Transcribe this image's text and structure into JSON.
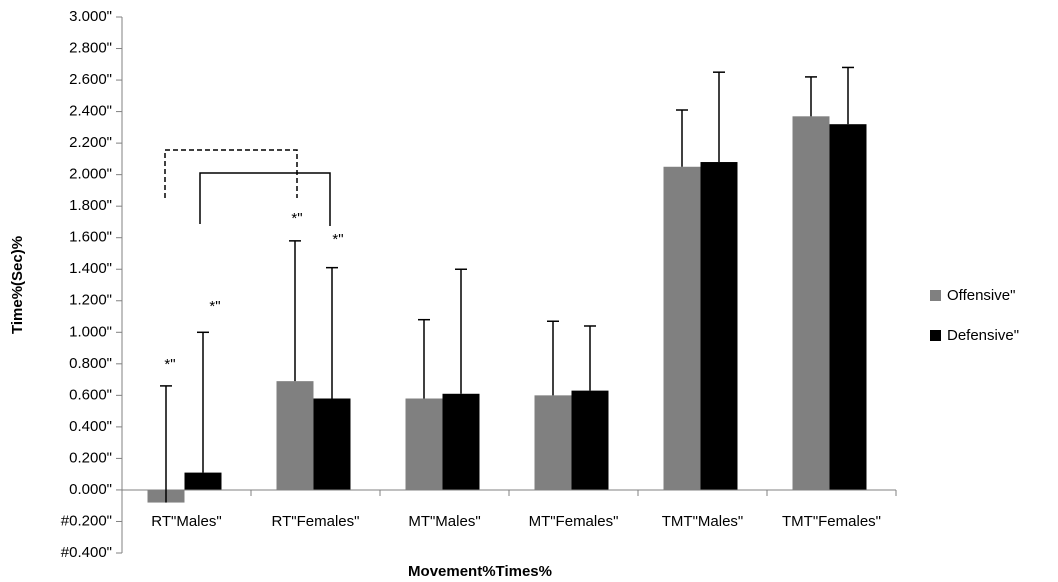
{
  "chart_data": {
    "type": "bar",
    "x_label": "Movement%Times%",
    "y_label": "Time%(Sec)%",
    "categories": [
      "RT\"Males\"",
      "RT\"Females\"",
      "MT\"Males\"",
      "MT\"Females\"",
      "TMT\"Males\"",
      "TMT\"Females\""
    ],
    "series": [
      {
        "name": "Offensive\"",
        "color": "#808080",
        "values": [
          -0.08,
          0.69,
          0.58,
          0.6,
          2.05,
          2.37
        ],
        "errors": [
          0.74,
          0.89,
          0.5,
          0.47,
          0.36,
          0.25
        ]
      },
      {
        "name": "Defensive\"",
        "color": "#000000",
        "values": [
          0.11,
          0.58,
          0.61,
          0.63,
          2.08,
          2.32
        ],
        "errors": [
          0.89,
          0.83,
          0.79,
          0.41,
          0.57,
          0.36
        ]
      }
    ],
    "annotations": [
      "*\"",
      "*\"",
      "*\"",
      "*\""
    ],
    "ylim": [
      -0.4,
      3.0
    ],
    "yticks": [
      {
        "value": -0.4,
        "label": "#0.400\""
      },
      {
        "value": -0.2,
        "label": "#0.200\""
      },
      {
        "value": 0,
        "label": "0.000\""
      },
      {
        "value": 0.2,
        "label": "0.200\""
      },
      {
        "value": 0.4,
        "label": "0.400\""
      },
      {
        "value": 0.6,
        "label": "0.600\""
      },
      {
        "value": 0.8,
        "label": "0.800\""
      },
      {
        "value": 1.0,
        "label": "1.000\""
      },
      {
        "value": 1.2,
        "label": "1.200\""
      },
      {
        "value": 1.4,
        "label": "1.400\""
      },
      {
        "value": 1.6,
        "label": "1.600\""
      },
      {
        "value": 1.8,
        "label": "1.800\""
      },
      {
        "value": 2.0,
        "label": "2.000\""
      },
      {
        "value": 2.2,
        "label": "2.200\""
      },
      {
        "value": 2.4,
        "label": "2.400\""
      },
      {
        "value": 2.6,
        "label": "2.600\""
      },
      {
        "value": 2.8,
        "label": "2.800\""
      },
      {
        "value": 3.0,
        "label": "3.000\""
      }
    ],
    "grid": false,
    "legend": "right"
  }
}
